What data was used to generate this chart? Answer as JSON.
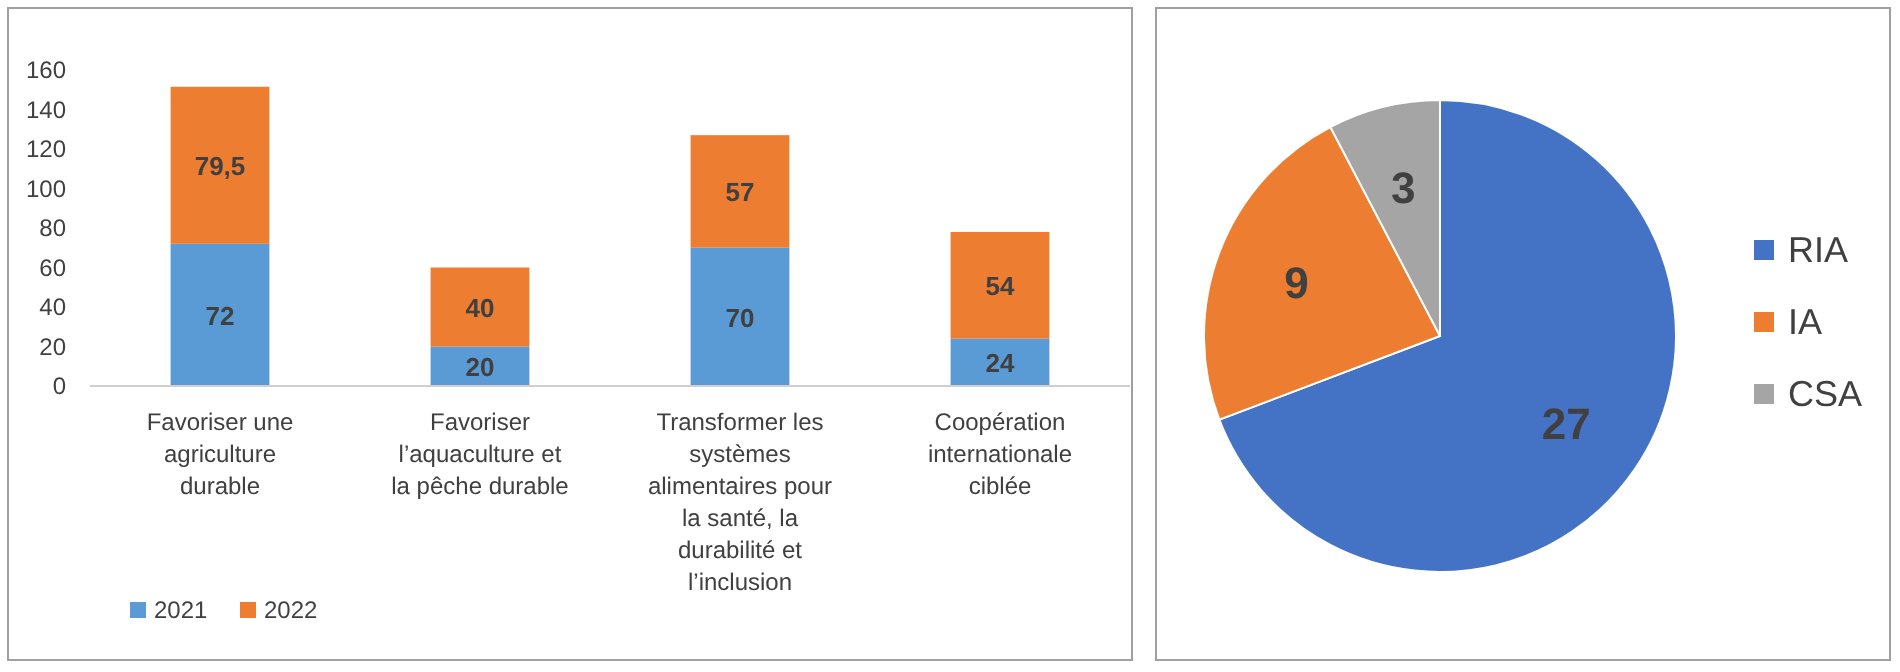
{
  "chart_data": [
    {
      "type": "bar",
      "stacked": true,
      "categories": [
        "Favoriser une agriculture durable",
        "Favoriser l’aquaculture et la pêche durable",
        "Transformer les systèmes alimentaires pour la santé, la durabilité et l’inclusion",
        "Coopération internationale ciblée"
      ],
      "series": [
        {
          "name": "2021",
          "color": "#5b9bd5",
          "values": [
            72,
            20,
            70,
            24
          ],
          "value_labels": [
            "72",
            "20",
            "70",
            "24"
          ]
        },
        {
          "name": "2022",
          "color": "#ed7d31",
          "values": [
            79.5,
            40,
            57,
            54
          ],
          "value_labels": [
            "79,5",
            "40",
            "57",
            "54"
          ]
        }
      ],
      "ylim": [
        0,
        160
      ],
      "yticks": [
        0,
        20,
        40,
        60,
        80,
        100,
        120,
        140,
        160
      ],
      "legend": "bottom left"
    },
    {
      "type": "pie",
      "categories": [
        "RIA",
        "IA",
        "CSA"
      ],
      "values": [
        27,
        9,
        3
      ],
      "colors": [
        "#4472c4",
        "#ed7d31",
        "#a5a5a5"
      ],
      "data_labels": true,
      "legend": "right"
    }
  ]
}
